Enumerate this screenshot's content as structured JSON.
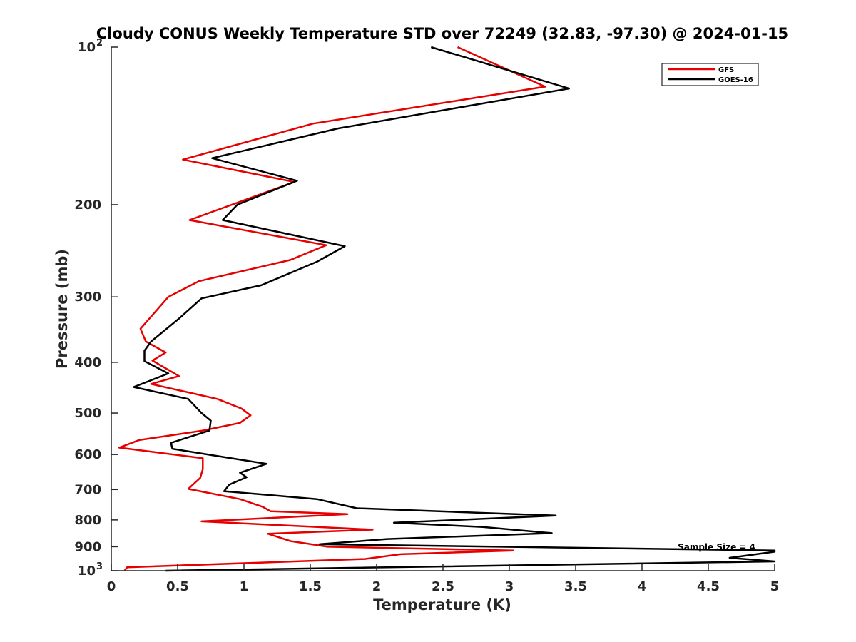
{
  "chart_data": {
    "type": "line",
    "title": "Cloudy CONUS Weekly Temperature STD over 72249 (32.83, -97.30) @ 2024-01-15",
    "xlabel": "Temperature (K)",
    "ylabel": "Pressure (mb)",
    "xlim": [
      0,
      5
    ],
    "ylim": [
      100,
      1000
    ],
    "y_scale": "log",
    "y_reversed": true,
    "grid": false,
    "legend_position": "top-right",
    "x_ticks": [
      "0",
      "0.5",
      "1",
      "1.5",
      "2",
      "2.5",
      "3",
      "3.5",
      "4",
      "4.5",
      "5"
    ],
    "y_ticks": [
      {
        "value": 100,
        "label": "10",
        "sup": "2"
      },
      {
        "value": 200,
        "label": "200",
        "sup": ""
      },
      {
        "value": 300,
        "label": "300",
        "sup": ""
      },
      {
        "value": 400,
        "label": "400",
        "sup": ""
      },
      {
        "value": 500,
        "label": "500",
        "sup": ""
      },
      {
        "value": 600,
        "label": "600",
        "sup": ""
      },
      {
        "value": 700,
        "label": "700",
        "sup": ""
      },
      {
        "value": 800,
        "label": "800",
        "sup": ""
      },
      {
        "value": 900,
        "label": "900",
        "sup": ""
      },
      {
        "value": 1000,
        "label": "10",
        "sup": "3"
      }
    ],
    "annotation": "Sample Size = 4",
    "series": [
      {
        "name": "GFS",
        "color": "#e60000",
        "points": [
          [
            2.61,
            100
          ],
          [
            3.27,
            119
          ],
          [
            1.52,
            140
          ],
          [
            0.54,
            164
          ],
          [
            1.38,
            181
          ],
          [
            0.59,
            214
          ],
          [
            1.62,
            239
          ],
          [
            1.35,
            255
          ],
          [
            0.66,
            280
          ],
          [
            0.43,
            300
          ],
          [
            0.22,
            345
          ],
          [
            0.26,
            365
          ],
          [
            0.41,
            383
          ],
          [
            0.31,
            397
          ],
          [
            0.51,
            425
          ],
          [
            0.3,
            440
          ],
          [
            0.8,
            470
          ],
          [
            0.98,
            490
          ],
          [
            1.05,
            505
          ],
          [
            0.97,
            522
          ],
          [
            0.69,
            540
          ],
          [
            0.21,
            563
          ],
          [
            0.06,
            582
          ],
          [
            0.69,
            610
          ],
          [
            0.69,
            640
          ],
          [
            0.67,
            665
          ],
          [
            0.58,
            698
          ],
          [
            0.97,
            730
          ],
          [
            1.14,
            755
          ],
          [
            1.2,
            770
          ],
          [
            1.78,
            780
          ],
          [
            0.68,
            805
          ],
          [
            1.97,
            835
          ],
          [
            1.18,
            850
          ],
          [
            1.35,
            878
          ],
          [
            1.63,
            900
          ],
          [
            3.03,
            915
          ],
          [
            2.18,
            930
          ],
          [
            1.91,
            950
          ],
          [
            0.12,
            985
          ],
          [
            0.1,
            1000
          ]
        ]
      },
      {
        "name": "GOES-16",
        "color": "#000000",
        "points": [
          [
            2.41,
            100
          ],
          [
            3.45,
            120
          ],
          [
            1.71,
            143
          ],
          [
            0.76,
            163
          ],
          [
            1.4,
            180
          ],
          [
            0.95,
            200
          ],
          [
            0.84,
            214
          ],
          [
            1.76,
            240
          ],
          [
            1.55,
            257
          ],
          [
            1.13,
            285
          ],
          [
            0.68,
            302
          ],
          [
            0.51,
            330
          ],
          [
            0.3,
            365
          ],
          [
            0.25,
            380
          ],
          [
            0.25,
            398
          ],
          [
            0.43,
            420
          ],
          [
            0.17,
            446
          ],
          [
            0.58,
            470
          ],
          [
            0.68,
            500
          ],
          [
            0.75,
            517
          ],
          [
            0.74,
            540
          ],
          [
            0.45,
            570
          ],
          [
            0.46,
            585
          ],
          [
            0.87,
            608
          ],
          [
            1.17,
            625
          ],
          [
            0.97,
            650
          ],
          [
            1.02,
            663
          ],
          [
            0.89,
            685
          ],
          [
            0.85,
            705
          ],
          [
            1.55,
            730
          ],
          [
            1.85,
            760
          ],
          [
            3.35,
            785
          ],
          [
            2.13,
            810
          ],
          [
            2.8,
            825
          ],
          [
            3.32,
            848
          ],
          [
            2.08,
            870
          ],
          [
            1.57,
            890
          ],
          [
            5.0,
            915
          ],
          [
            5.0,
            920
          ],
          [
            4.66,
            945
          ],
          [
            5.0,
            960
          ],
          [
            0.41,
            1000
          ]
        ]
      }
    ]
  }
}
